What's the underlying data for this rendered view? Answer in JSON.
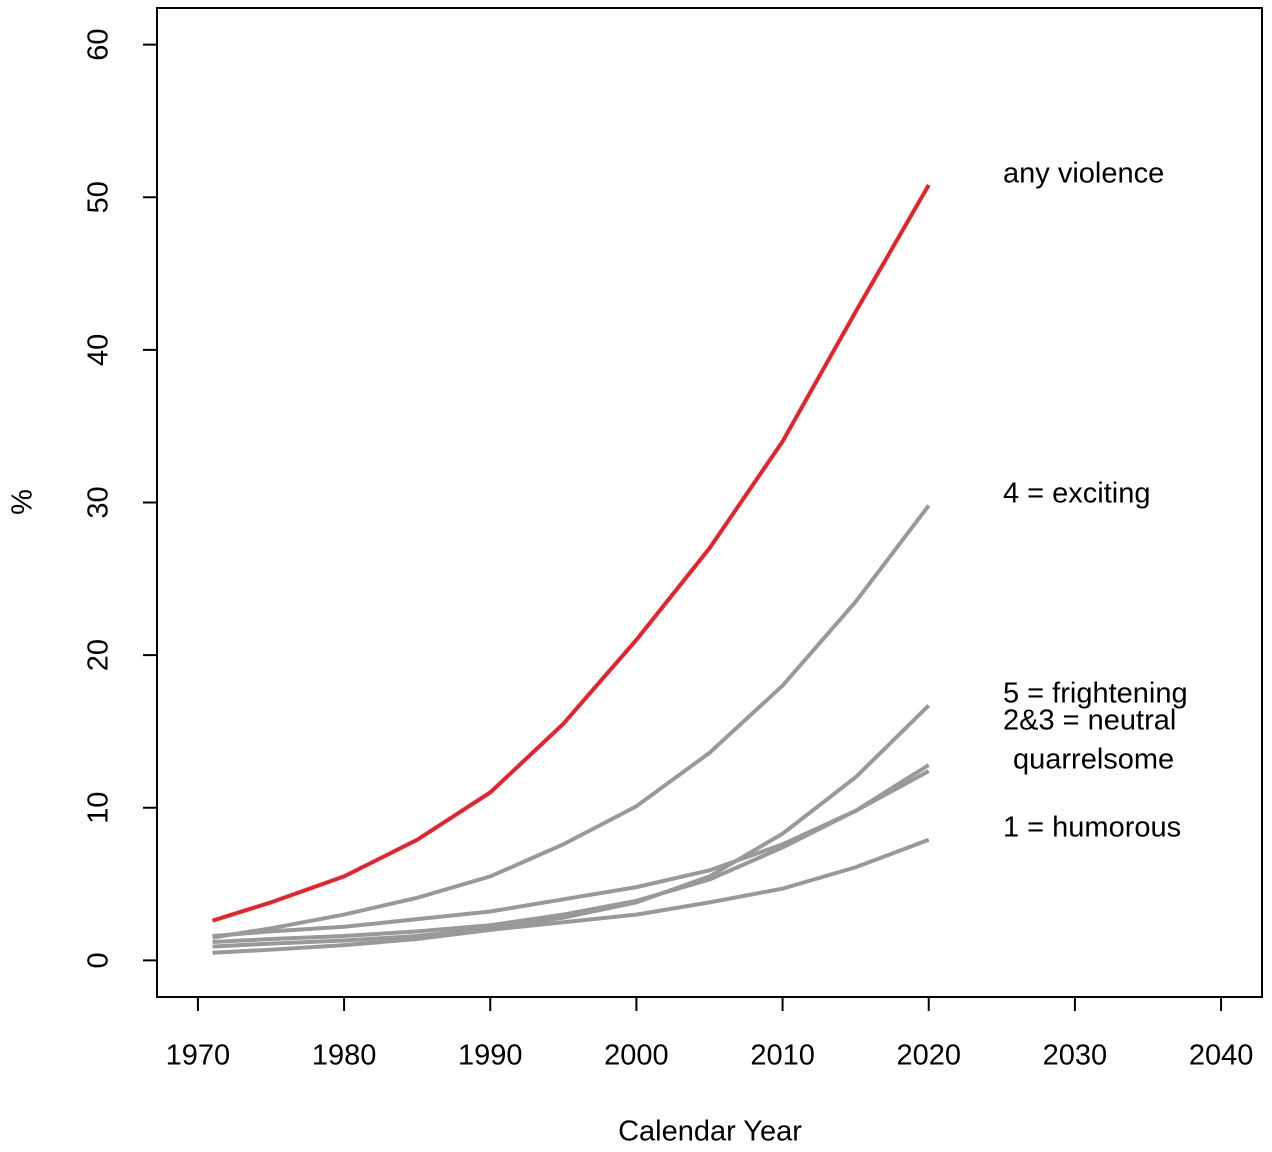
{
  "chart_data": {
    "type": "line",
    "x_label": "Calendar Year",
    "y_label": "%",
    "x": [
      1971,
      1975,
      1980,
      1985,
      1990,
      1995,
      2000,
      2005,
      2010,
      2015,
      2020
    ],
    "series": [
      {
        "name": "any violence",
        "color": "#e8222a",
        "values": [
          2.6,
          3.8,
          5.5,
          7.9,
          11.0,
          15.5,
          21.0,
          27.0,
          34.0,
          42.5,
          50.8
        ]
      },
      {
        "name": "4 = exciting",
        "color": "#999999",
        "values": [
          1.5,
          2.1,
          3.0,
          4.1,
          5.5,
          7.6,
          10.1,
          13.6,
          18.0,
          23.5,
          29.8
        ]
      },
      {
        "name": "5 = frightening",
        "color": "#999999",
        "values": [
          0.9,
          1.1,
          1.3,
          1.6,
          2.1,
          2.8,
          3.8,
          5.5,
          8.3,
          12.0,
          16.7
        ]
      },
      {
        "name": "2&3 = neutral",
        "color": "#999999",
        "values": [
          1.2,
          1.4,
          1.6,
          1.9,
          2.3,
          3.0,
          3.9,
          5.3,
          7.4,
          9.8,
          12.8
        ]
      },
      {
        "name": "quarrelsome",
        "color": "#999999",
        "values": [
          1.6,
          1.9,
          2.2,
          2.7,
          3.2,
          4.0,
          4.8,
          5.9,
          7.6,
          9.8,
          12.4
        ]
      },
      {
        "name": "1 = humorous",
        "color": "#999999",
        "values": [
          0.5,
          0.7,
          1.0,
          1.4,
          2.0,
          2.5,
          3.0,
          3.8,
          4.7,
          6.1,
          7.9
        ]
      }
    ],
    "xlim": [
      1967.2,
      2042.8
    ],
    "xticks": [
      1970,
      1980,
      1990,
      2000,
      2010,
      2020,
      2030,
      2040
    ],
    "ylim": [
      -2.4,
      62.4
    ],
    "yticks": [
      0,
      10,
      20,
      30,
      40,
      50,
      60
    ]
  }
}
